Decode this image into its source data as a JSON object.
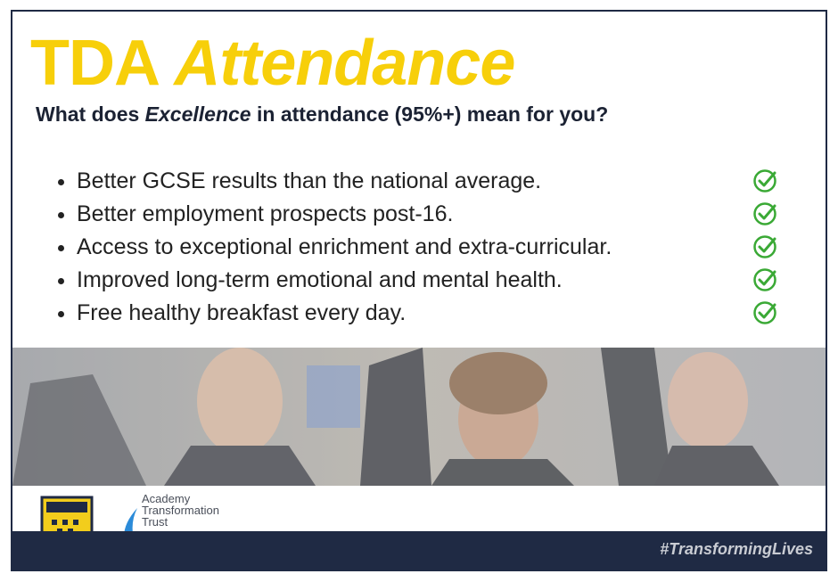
{
  "header": {
    "title_part1": "TDA",
    "title_part2": "Attendance",
    "subtitle_part1": "What does ",
    "subtitle_part2": "Excellence",
    "subtitle_part3": " in attendance (95%+) mean for you?"
  },
  "benefits": [
    "Better GCSE results than the national average.",
    "Better employment prospects post-16.",
    "Access to exceptional enrichment and extra-curricular.",
    "Improved long-term emotional and mental health.",
    "Free healthy breakfast every day."
  ],
  "footer": {
    "trust_line1": "Academy",
    "trust_line2": "Transformation",
    "trust_line3": "Trust",
    "hashtag": "#TransformingLives"
  }
}
